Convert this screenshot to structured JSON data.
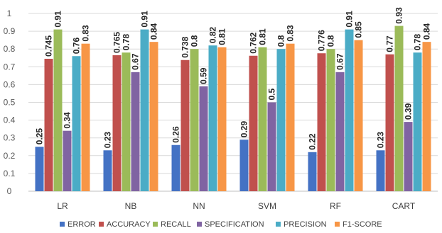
{
  "chart_data": {
    "type": "bar",
    "categories": [
      "LR",
      "NB",
      "NN",
      "SVM",
      "RF",
      "CART"
    ],
    "series": [
      {
        "name": "ERROR",
        "color": "#4472C4",
        "values": [
          0.25,
          0.23,
          0.26,
          0.29,
          0.22,
          0.23
        ],
        "labels": [
          "0.25",
          "0.23",
          "0.26",
          "0.29",
          "0.22",
          "0.23"
        ]
      },
      {
        "name": "ACCURACY",
        "color": "#C0504D",
        "values": [
          0.745,
          0.765,
          0.738,
          0.762,
          0.776,
          0.77
        ],
        "labels": [
          "0.745",
          "0.765",
          "0.738",
          "0.762",
          "0.776",
          "0.77"
        ]
      },
      {
        "name": "RECALL",
        "color": "#9BBB59",
        "values": [
          0.91,
          0.78,
          0.8,
          0.81,
          0.8,
          0.93
        ],
        "labels": [
          "0.91",
          "0.78",
          "0.8",
          "0.81",
          "0.8",
          "0.93"
        ]
      },
      {
        "name": "SPECIFICATION",
        "color": "#8064A2",
        "values": [
          0.34,
          0.67,
          0.59,
          0.5,
          0.67,
          0.39
        ],
        "labels": [
          "0.34",
          "0.67",
          "0.59",
          "0.5",
          "0.67",
          "0.39"
        ]
      },
      {
        "name": "PRECISION",
        "color": "#4BACC6",
        "values": [
          0.76,
          0.91,
          0.82,
          0.8,
          0.91,
          0.78
        ],
        "labels": [
          "0.76",
          "0.91",
          "0.82",
          "0.8",
          "0.91",
          "0.78"
        ]
      },
      {
        "name": "F1-SCORE",
        "color": "#F79646",
        "values": [
          0.83,
          0.84,
          0.81,
          0.83,
          0.85,
          0.84
        ],
        "labels": [
          "0.83",
          "0.84",
          "0.81",
          "0.83",
          "0.85",
          "0.84"
        ]
      }
    ],
    "yticks": [
      "0",
      "0.1",
      "0.2",
      "0.3",
      "0.4",
      "0.5",
      "0.6",
      "0.7",
      "0.8",
      "0.9",
      "1"
    ],
    "ylim": [
      0,
      1
    ],
    "grid": true,
    "legend_position": "bottom",
    "title": "",
    "xlabel": "",
    "ylabel": ""
  }
}
